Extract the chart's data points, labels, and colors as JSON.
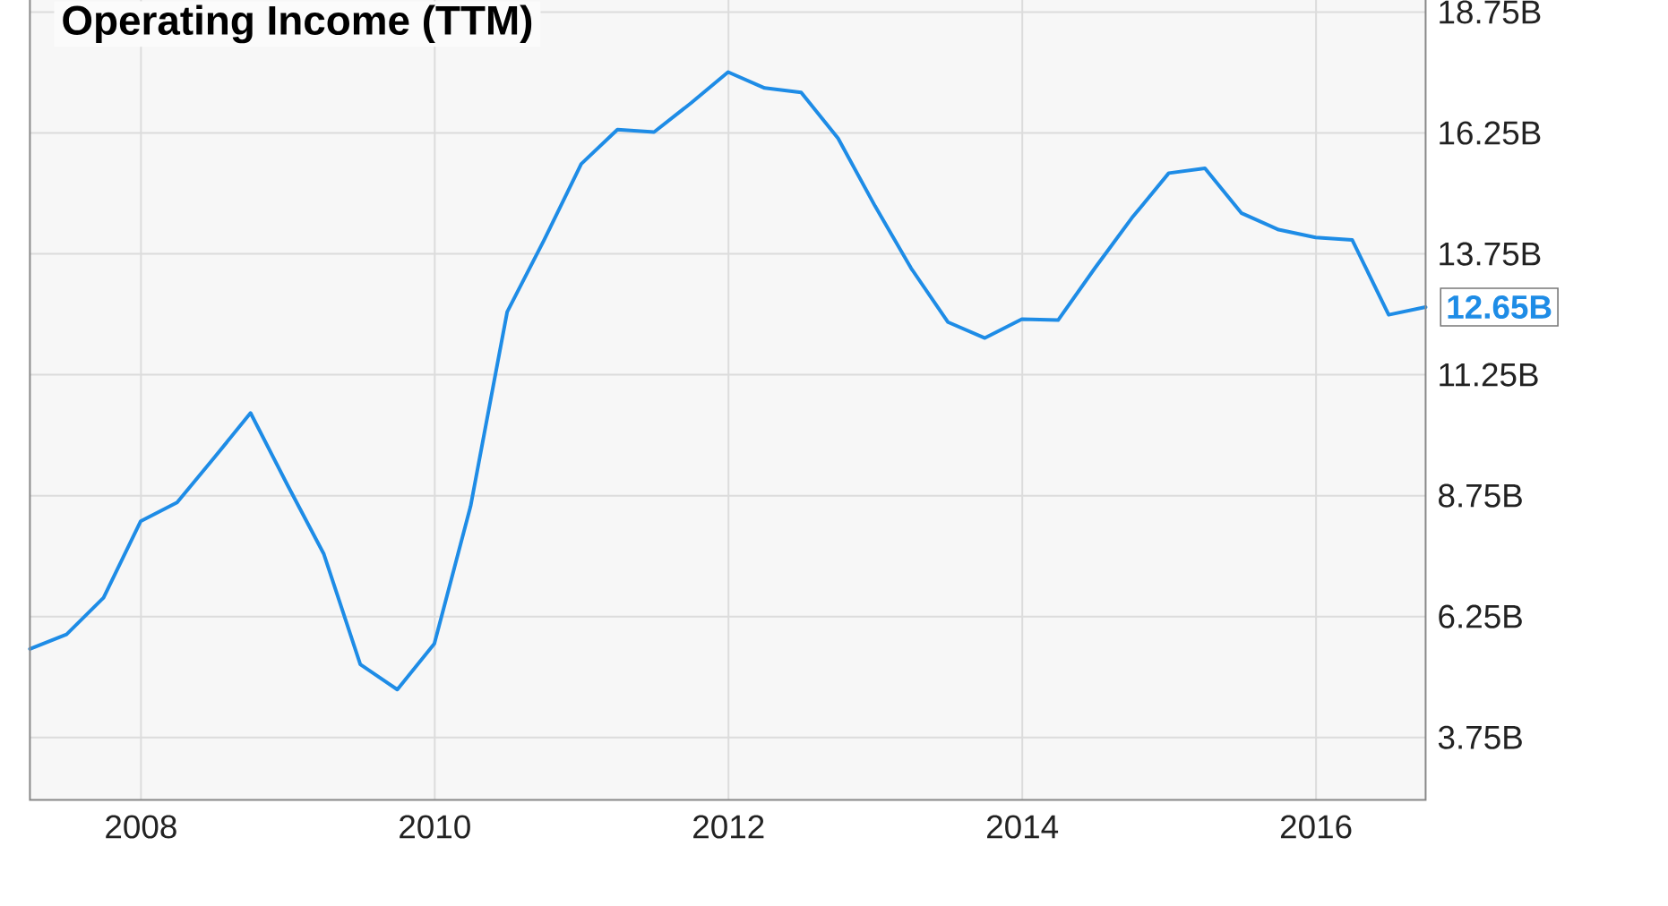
{
  "chart_data": {
    "type": "line",
    "title": "Operating Income (TTM)",
    "x": [
      "2007-03-31",
      "2007-06-30",
      "2007-09-30",
      "2007-12-31",
      "2008-03-31",
      "2008-06-30",
      "2008-09-30",
      "2008-12-31",
      "2009-03-31",
      "2009-06-30",
      "2009-09-30",
      "2009-12-31",
      "2010-03-31",
      "2010-06-30",
      "2010-09-30",
      "2010-12-31",
      "2011-03-31",
      "2011-06-30",
      "2011-09-30",
      "2011-12-31",
      "2012-03-31",
      "2012-06-30",
      "2012-09-30",
      "2012-12-31",
      "2013-03-31",
      "2013-06-30",
      "2013-09-30",
      "2013-12-31",
      "2014-03-31",
      "2014-06-30",
      "2014-09-30",
      "2014-12-31",
      "2015-03-31",
      "2015-06-30",
      "2015-09-30",
      "2015-12-31",
      "2016-03-31",
      "2016-06-30",
      "2016-09-30"
    ],
    "values": [
      5.58,
      5.88,
      6.64,
      8.22,
      8.61,
      9.52,
      10.46,
      8.97,
      7.55,
      5.26,
      4.74,
      5.69,
      8.53,
      12.55,
      14.04,
      15.61,
      16.32,
      16.27,
      16.87,
      17.51,
      17.18,
      17.09,
      16.14,
      14.74,
      13.45,
      12.34,
      12.01,
      12.4,
      12.38,
      13.45,
      14.49,
      15.42,
      15.52,
      14.59,
      14.25,
      14.09,
      14.04,
      12.49,
      12.65
    ],
    "value_labels": [
      null,
      null,
      null,
      null,
      null,
      null,
      null,
      null,
      null,
      null,
      null,
      null,
      null,
      null,
      null,
      null,
      null,
      null,
      null,
      null,
      null,
      null,
      null,
      null,
      null,
      null,
      null,
      null,
      null,
      null,
      null,
      null,
      null,
      null,
      null,
      null,
      null,
      null,
      "12.65B"
    ],
    "color": "#1e8ce6",
    "xlim": [
      "2007-03-31",
      "2016-09-30"
    ],
    "xticks": [
      "2008",
      "2010",
      "2012",
      "2014",
      "2016"
    ],
    "ylim": [
      2.46,
      19.0
    ],
    "yticks": [
      {
        "value": 3.75,
        "label": "3.75B"
      },
      {
        "value": 6.25,
        "label": "6.25B"
      },
      {
        "value": 8.75,
        "label": "8.75B"
      },
      {
        "value": 11.25,
        "label": "11.25B"
      },
      {
        "value": 13.75,
        "label": "13.75B"
      },
      {
        "value": 16.25,
        "label": "16.25B"
      },
      {
        "value": 18.75,
        "label": "18.75B"
      }
    ],
    "grid": true
  }
}
